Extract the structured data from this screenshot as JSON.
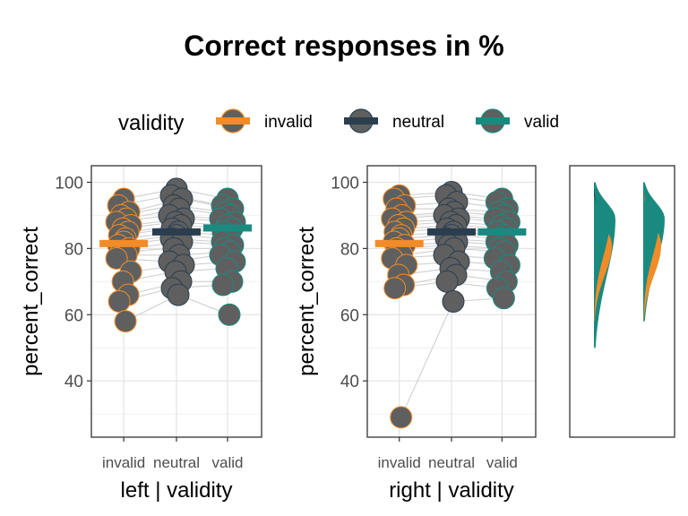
{
  "title": "Correct responses in %",
  "legend": {
    "title": "validity",
    "position": "top",
    "items": [
      {
        "label": "invalid",
        "color": "#F28C28"
      },
      {
        "label": "neutral",
        "color": "#2B3E50"
      },
      {
        "label": "valid",
        "color": "#1A8A80"
      }
    ]
  },
  "point_fill": "#5f5f5f",
  "chart_data": [
    {
      "type": "scatter",
      "panel": "left",
      "xlabel": "left | validity",
      "ylabel": "percent_correct",
      "categories": [
        "invalid",
        "neutral",
        "valid"
      ],
      "ylim": [
        23,
        105
      ],
      "yticks": [
        40,
        60,
        80,
        100
      ],
      "grid": true,
      "means": [
        81.5,
        85.0,
        86.2
      ],
      "series": [
        {
          "name": "invalid",
          "values": [
            95,
            93,
            91,
            90,
            89,
            88,
            87,
            86,
            85,
            84,
            83,
            82,
            81,
            80,
            79,
            78,
            77,
            73,
            70,
            66,
            64,
            58
          ]
        },
        {
          "name": "neutral",
          "values": [
            98,
            96,
            95,
            93,
            92,
            90,
            89,
            88,
            87,
            86,
            85,
            84,
            83,
            82,
            80,
            78,
            76,
            75,
            73,
            70,
            68,
            66
          ]
        },
        {
          "name": "valid",
          "values": [
            95,
            93,
            92,
            91,
            90,
            89,
            88,
            87,
            86,
            85,
            84,
            83,
            82,
            81,
            80,
            79,
            78,
            76,
            74,
            70,
            69,
            60
          ]
        }
      ]
    },
    {
      "type": "scatter",
      "panel": "right",
      "xlabel": "right | validity",
      "ylabel": "percent_correct",
      "categories": [
        "invalid",
        "neutral",
        "valid"
      ],
      "ylim": [
        23,
        105
      ],
      "yticks": [
        40,
        60,
        80,
        100
      ],
      "grid": true,
      "means": [
        81.5,
        85.0,
        85.0
      ],
      "series": [
        {
          "name": "invalid",
          "values": [
            96,
            95,
            93,
            92,
            90,
            89,
            88,
            87,
            86,
            85,
            84,
            83,
            82,
            81,
            80,
            78,
            77,
            75,
            72,
            69,
            68,
            29
          ]
        },
        {
          "name": "neutral",
          "values": [
            97,
            96,
            94,
            92,
            91,
            90,
            89,
            88,
            87,
            86,
            85,
            84,
            83,
            82,
            81,
            80,
            78,
            76,
            74,
            72,
            70,
            64
          ]
        },
        {
          "name": "valid",
          "values": [
            95,
            94,
            92,
            91,
            90,
            89,
            88,
            87,
            86,
            85,
            84,
            83,
            82,
            81,
            80,
            79,
            77,
            75,
            73,
            70,
            68,
            65
          ]
        }
      ]
    },
    {
      "type": "area",
      "panel": "density",
      "ylim": [
        23,
        105
      ],
      "groups": [
        "left",
        "right"
      ],
      "note_ranges": {
        "left": {
          "invalid": [
            58,
            95
          ],
          "neutral": [
            66,
            98
          ],
          "valid": [
            50,
            100
          ]
        },
        "right": {
          "invalid": [
            58,
            97
          ],
          "neutral": [
            64,
            97
          ],
          "valid": [
            58,
            100
          ]
        }
      }
    }
  ]
}
